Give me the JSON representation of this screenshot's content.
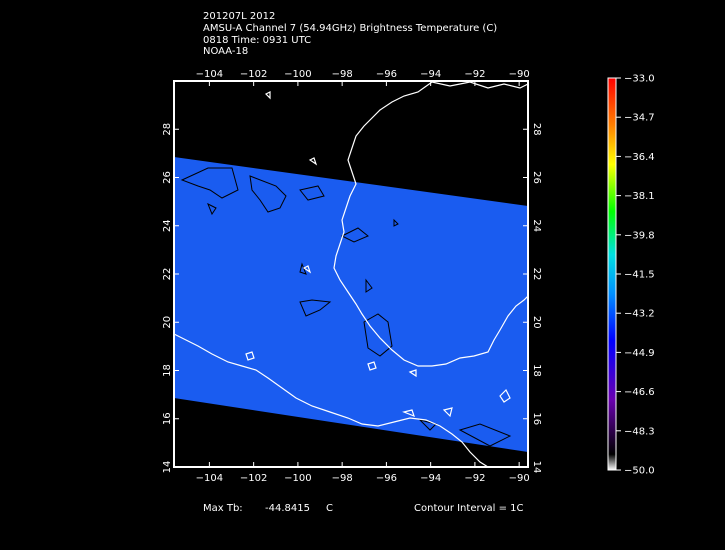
{
  "header": {
    "line1": "201207L 2012",
    "line2": "AMSU-A Channel 7 (54.94GHz) Brightness Temperature (C)",
    "line3": "0818 Time: 0931 UTC",
    "line4": "NOAA-18"
  },
  "footer": {
    "max_label": "Max Tb:",
    "max_value": "-44.8415",
    "max_unit": "C",
    "contour_text": "Contour Interval = 1C"
  },
  "map": {
    "lon_ticks": [
      "−104",
      "−102",
      "−100",
      "−98",
      "−96",
      "−94",
      "−92",
      "−90"
    ],
    "lon_values": [
      -104,
      -102,
      -100,
      -98,
      -96,
      -94,
      -92,
      -90
    ],
    "lat_ticks": [
      "14",
      "16",
      "18",
      "20",
      "22",
      "24",
      "26",
      "28"
    ],
    "lat_values": [
      14,
      16,
      18,
      20,
      22,
      24,
      26,
      28
    ],
    "lon_range": [
      -105.6,
      -89.6
    ],
    "lat_range": [
      14,
      30
    ],
    "swath_color": "#1a5cf0",
    "coast_color": "#ffffff",
    "contour_color": "#000000"
  },
  "colorbar": {
    "labels": [
      "−33.0",
      "−34.7",
      "−36.4",
      "−38.1",
      "−39.8",
      "−41.5",
      "−43.2",
      "−44.9",
      "−46.6",
      "−48.3",
      "−50.0"
    ],
    "range": [
      -50.0,
      -33.0
    ]
  }
}
